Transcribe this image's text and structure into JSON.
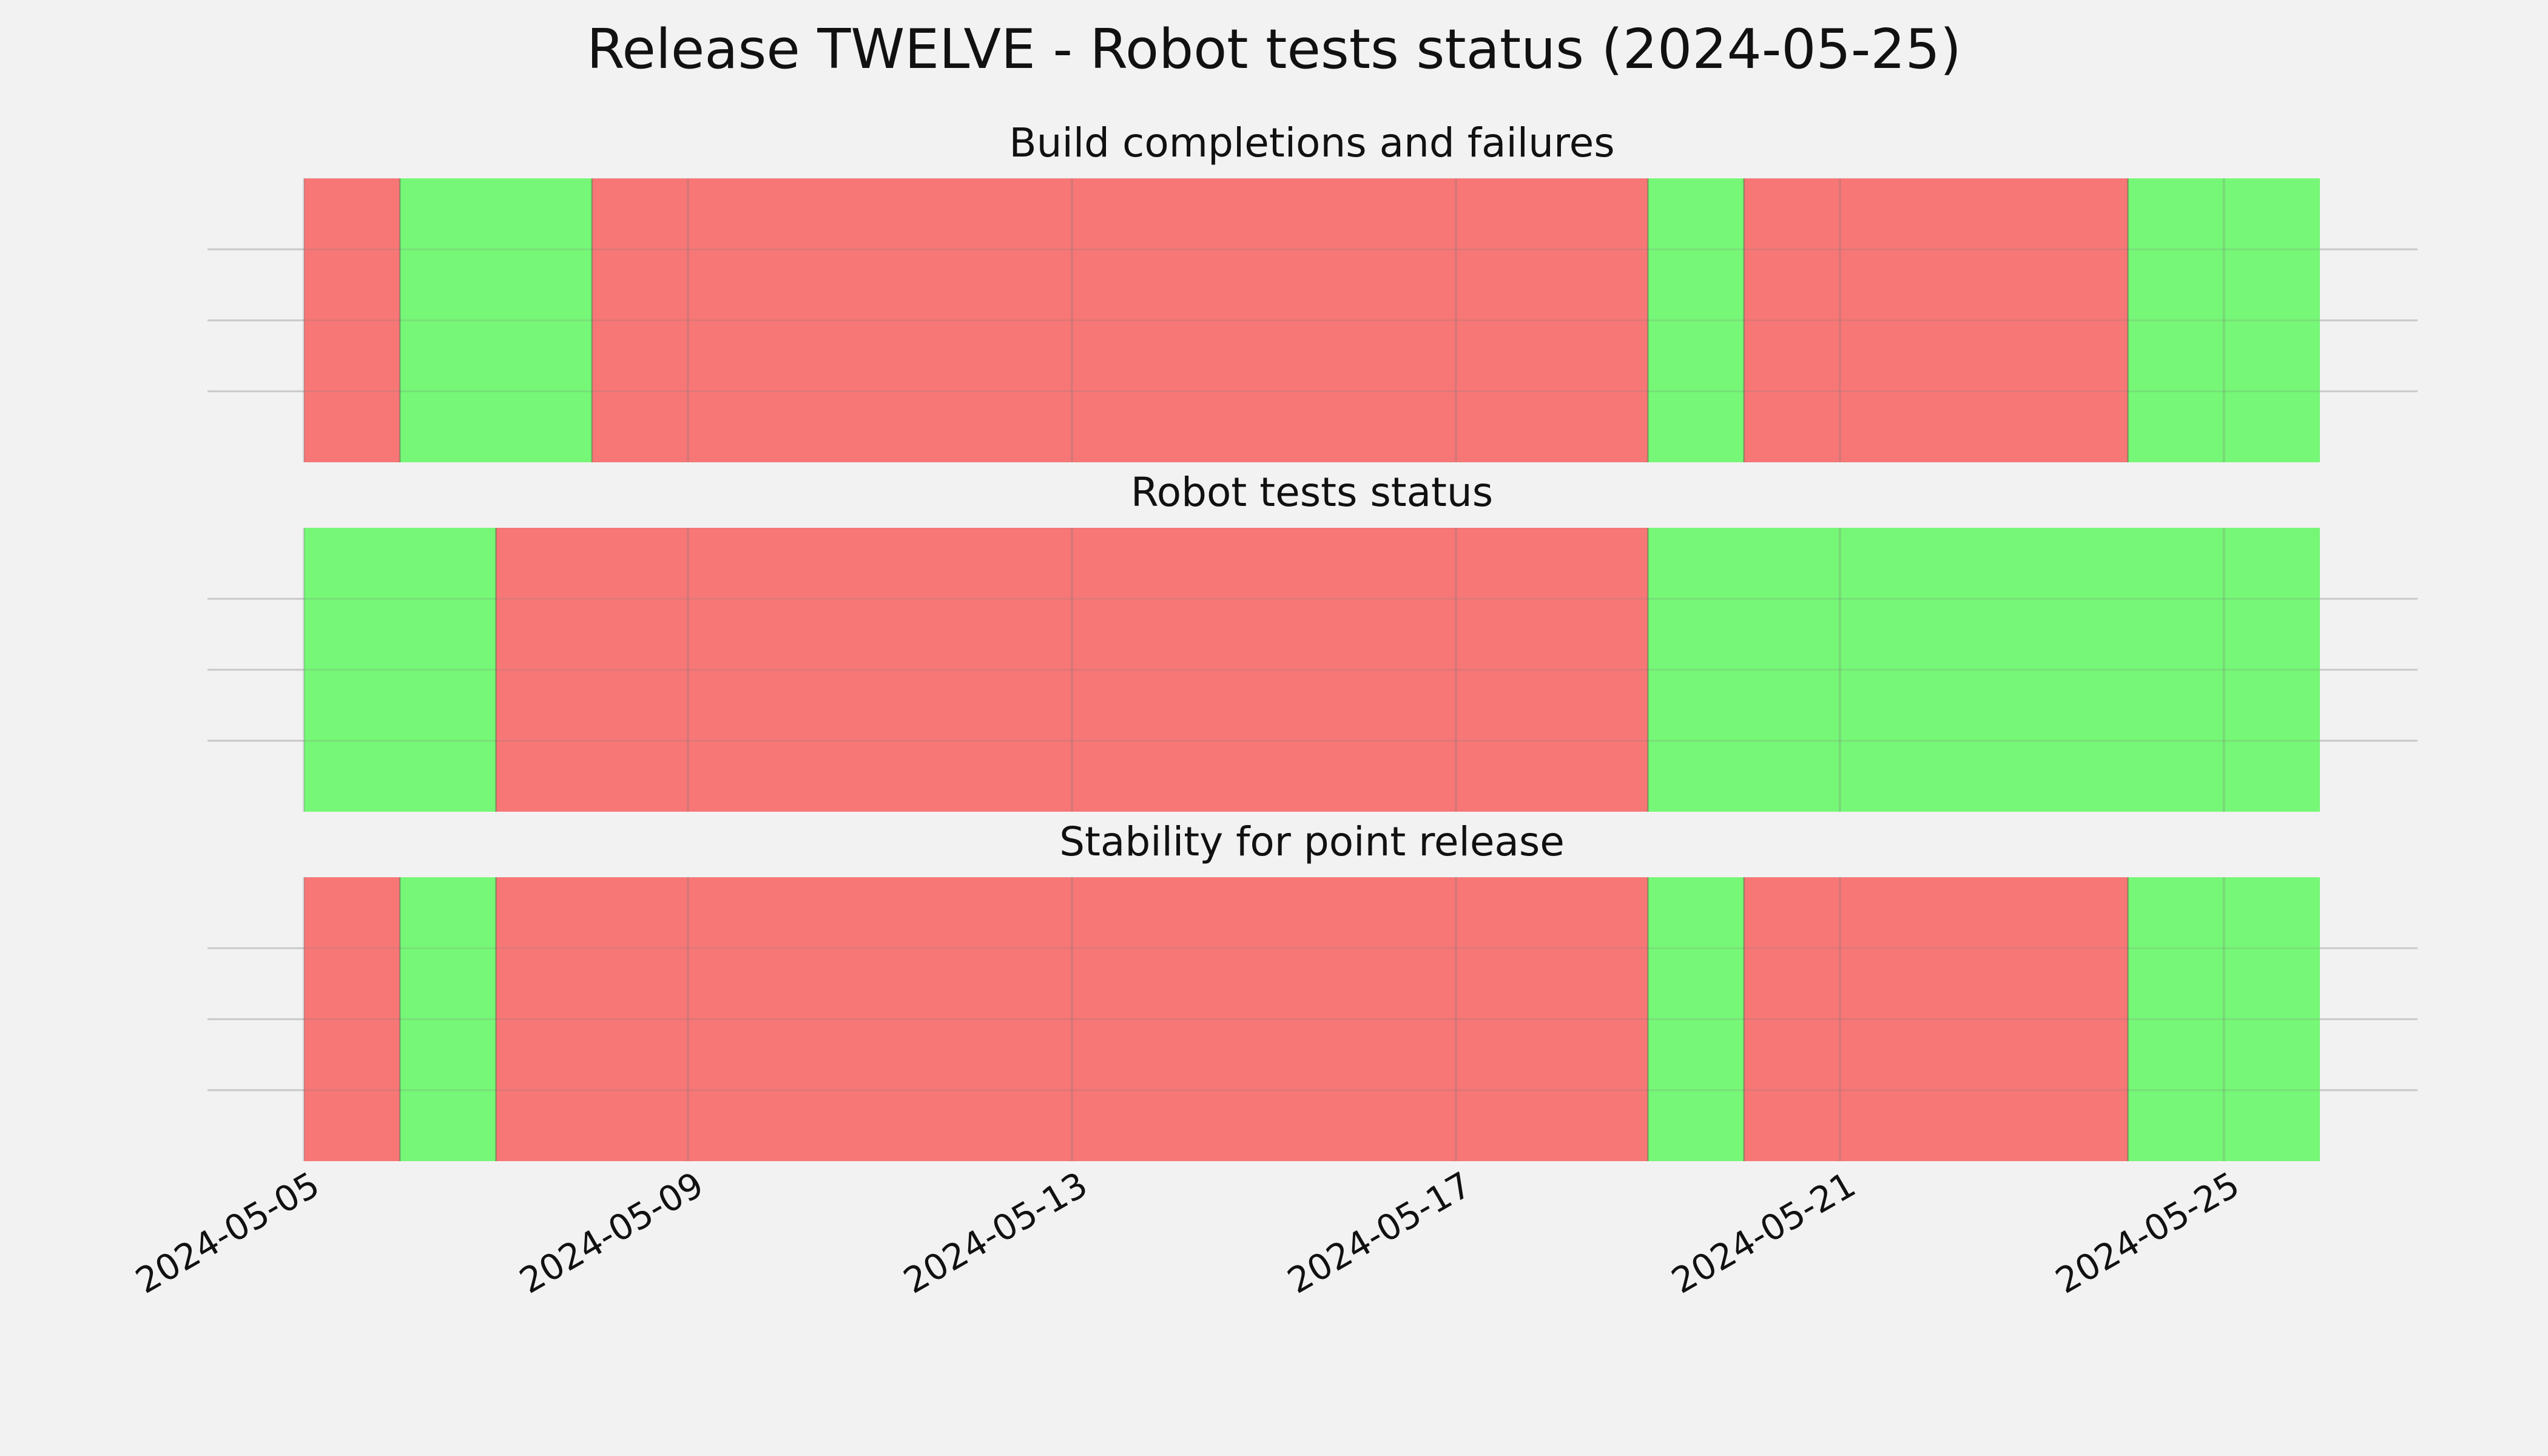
{
  "chart_data": {
    "type": "timeline",
    "title": "Release TWELVE - Robot tests status (2024-05-25)",
    "xlabel": "",
    "ylabel": "",
    "x_range": [
      "2024-05-05",
      "2024-05-26"
    ],
    "x_ticks": [
      "2024-05-05",
      "2024-05-09",
      "2024-05-13",
      "2024-05-17",
      "2024-05-21",
      "2024-05-25"
    ],
    "grid": true,
    "colors": {
      "pass": "#77f777",
      "fail": "#f77777",
      "background": "#f2f2f2"
    },
    "panels": [
      {
        "title": "Build completions and failures",
        "segments": [
          {
            "start": "2024-05-05",
            "end": "2024-05-06",
            "status": "fail"
          },
          {
            "start": "2024-05-06",
            "end": "2024-05-08",
            "status": "pass"
          },
          {
            "start": "2024-05-08",
            "end": "2024-05-19",
            "status": "fail"
          },
          {
            "start": "2024-05-19",
            "end": "2024-05-20",
            "status": "pass"
          },
          {
            "start": "2024-05-20",
            "end": "2024-05-24",
            "status": "fail"
          },
          {
            "start": "2024-05-24",
            "end": "2024-05-26",
            "status": "pass"
          }
        ]
      },
      {
        "title": "Robot tests status",
        "segments": [
          {
            "start": "2024-05-05",
            "end": "2024-05-07",
            "status": "pass"
          },
          {
            "start": "2024-05-07",
            "end": "2024-05-19",
            "status": "fail"
          },
          {
            "start": "2024-05-19",
            "end": "2024-05-26",
            "status": "pass"
          }
        ]
      },
      {
        "title": "Stability for point release",
        "segments": [
          {
            "start": "2024-05-05",
            "end": "2024-05-06",
            "status": "fail"
          },
          {
            "start": "2024-05-06",
            "end": "2024-05-07",
            "status": "pass"
          },
          {
            "start": "2024-05-07",
            "end": "2024-05-19",
            "status": "fail"
          },
          {
            "start": "2024-05-19",
            "end": "2024-05-20",
            "status": "pass"
          },
          {
            "start": "2024-05-20",
            "end": "2024-05-24",
            "status": "fail"
          },
          {
            "start": "2024-05-24",
            "end": "2024-05-26",
            "status": "pass"
          }
        ]
      }
    ]
  }
}
